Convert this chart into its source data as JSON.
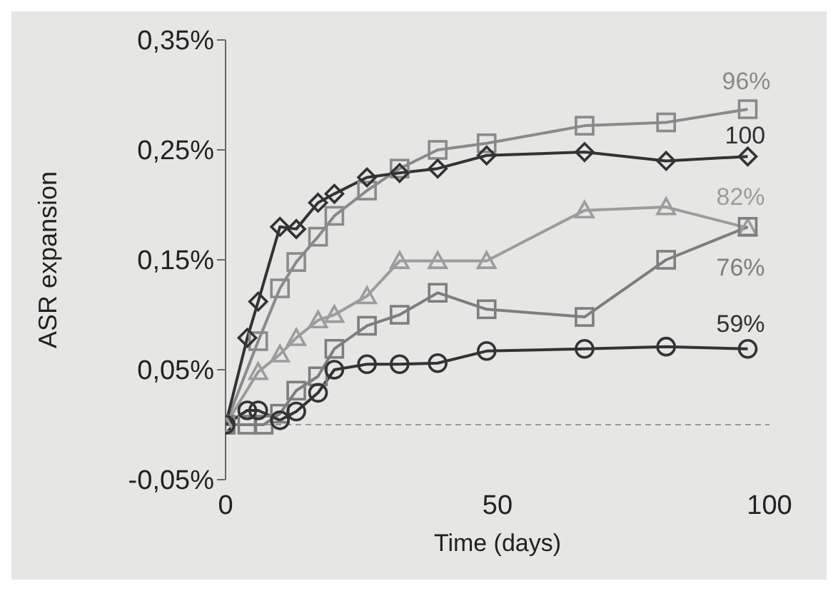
{
  "chart_data": {
    "type": "line",
    "xlabel": "Time (days)",
    "ylabel": "ASR expansion",
    "xlim": [
      0,
      100
    ],
    "xticks": [
      0,
      50,
      100
    ],
    "ylim": [
      -0.05,
      0.35
    ],
    "yticks": [
      {
        "value": -0.05,
        "label": "-0,05%"
      },
      {
        "value": 0.05,
        "label": "0,05%"
      },
      {
        "value": 0.15,
        "label": "0,15%"
      },
      {
        "value": 0.25,
        "label": "0,25%"
      },
      {
        "value": 0.35,
        "label": "0,35%"
      }
    ],
    "grid": false,
    "legend": false,
    "ref_lines": [
      {
        "axis": "y",
        "value": 0,
        "color": "#999999",
        "line_style": "dashed"
      }
    ],
    "series": [
      {
        "name": "96%",
        "color": "#8a8a8a",
        "marker": "square",
        "x": [
          0,
          6,
          10,
          13,
          17,
          20,
          26,
          32,
          39,
          48,
          66,
          81,
          96
        ],
        "values": [
          0,
          0.076,
          0.124,
          0.148,
          0.171,
          0.19,
          0.213,
          0.233,
          0.25,
          0.256,
          0.272,
          0.275,
          0.287
        ]
      },
      {
        "name": "100",
        "color": "#333333",
        "marker": "diamond",
        "x": [
          0,
          4,
          6,
          10,
          13,
          17,
          20,
          26,
          32,
          39,
          48,
          66,
          81,
          96
        ],
        "values": [
          0,
          0.079,
          0.112,
          0.18,
          0.178,
          0.202,
          0.21,
          0.225,
          0.229,
          0.233,
          0.245,
          0.248,
          0.24,
          0.244
        ]
      },
      {
        "name": "82%",
        "color": "#9c9c9c",
        "marker": "triangle",
        "x": [
          0,
          6,
          10,
          13,
          17,
          20,
          26,
          32,
          39,
          48,
          66,
          81,
          96
        ],
        "values": [
          0,
          0.048,
          0.064,
          0.079,
          0.095,
          0.1,
          0.117,
          0.149,
          0.149,
          0.149,
          0.195,
          0.198,
          0.179
        ]
      },
      {
        "name": "76%",
        "color": "#7e7e7e",
        "marker": "square",
        "x": [
          0,
          4,
          7,
          10,
          13,
          17,
          20,
          26,
          32,
          39,
          48,
          66,
          81,
          96
        ],
        "values": [
          0,
          0,
          0,
          0.01,
          0.031,
          0.044,
          0.069,
          0.09,
          0.1,
          0.12,
          0.105,
          0.098,
          0.15,
          0.18
        ]
      },
      {
        "name": "59%",
        "color": "#333333",
        "marker": "circle",
        "x": [
          0,
          4,
          6,
          10,
          13,
          17,
          20,
          26,
          32,
          39,
          48,
          66,
          81,
          96
        ],
        "values": [
          0,
          0.013,
          0.013,
          0.004,
          0.012,
          0.029,
          0.05,
          0.055,
          0.055,
          0.056,
          0.067,
          0.069,
          0.071,
          0.069
        ]
      }
    ]
  }
}
